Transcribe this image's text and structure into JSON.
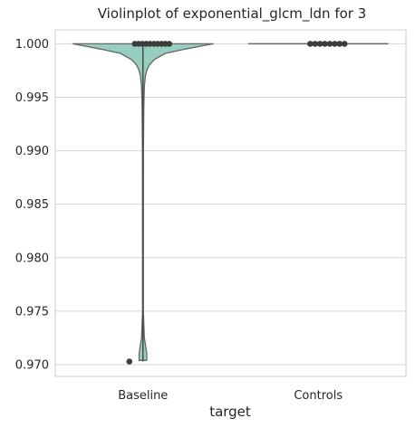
{
  "chart_data": {
    "type": "violin",
    "title": "Violinplot of exponential_glcm_ldn for 3",
    "xlabel": "target",
    "ylabel": "",
    "categories": [
      "Baseline",
      "Controls"
    ],
    "ylim": [
      0.9689,
      1.0013
    ],
    "yticks": [
      0.97,
      0.975,
      0.98,
      0.985,
      0.99,
      0.995,
      1.0
    ],
    "ytick_labels": [
      "0.970",
      "0.975",
      "0.980",
      "0.985",
      "0.990",
      "0.995",
      "1.000"
    ],
    "grid": true,
    "series": [
      {
        "category": "Baseline",
        "min": 0.9703,
        "max": 1.0,
        "q1": 0.9998,
        "median": 1.0,
        "q3": 1.0,
        "density": [
          [
            1.0,
            1.0
          ],
          [
            0.9995,
            0.6
          ],
          [
            0.9991,
            0.32
          ],
          [
            0.9985,
            0.16
          ],
          [
            0.998,
            0.09
          ],
          [
            0.9975,
            0.055
          ],
          [
            0.997,
            0.035
          ],
          [
            0.996,
            0.02
          ],
          [
            0.994,
            0.012
          ],
          [
            0.99,
            0.007
          ],
          [
            0.98,
            0.006
          ],
          [
            0.975,
            0.006
          ],
          [
            0.9725,
            0.02
          ],
          [
            0.9715,
            0.045
          ],
          [
            0.971,
            0.055
          ],
          [
            0.9704,
            0.055
          ]
        ],
        "outliers": [
          0.9703,
          1.0,
          1.0,
          1.0,
          1.0,
          1.0,
          1.0,
          1.0,
          1.0,
          1.0,
          1.0
        ]
      },
      {
        "category": "Controls",
        "min": 1.0,
        "max": 1.0,
        "q1": 1.0,
        "median": 1.0,
        "q3": 1.0,
        "density": [],
        "outliers": [
          1.0,
          1.0,
          1.0,
          1.0,
          1.0,
          1.0,
          1.0,
          1.0
        ]
      }
    ],
    "colors": {
      "violin_fill": "#96cec0",
      "violin_stroke": "#666666",
      "box_line": "#4a4a4a",
      "outlier": "#3d3d3d",
      "grid": "#d6d6d6",
      "frame": "#cccccc",
      "text": "#262626"
    }
  }
}
